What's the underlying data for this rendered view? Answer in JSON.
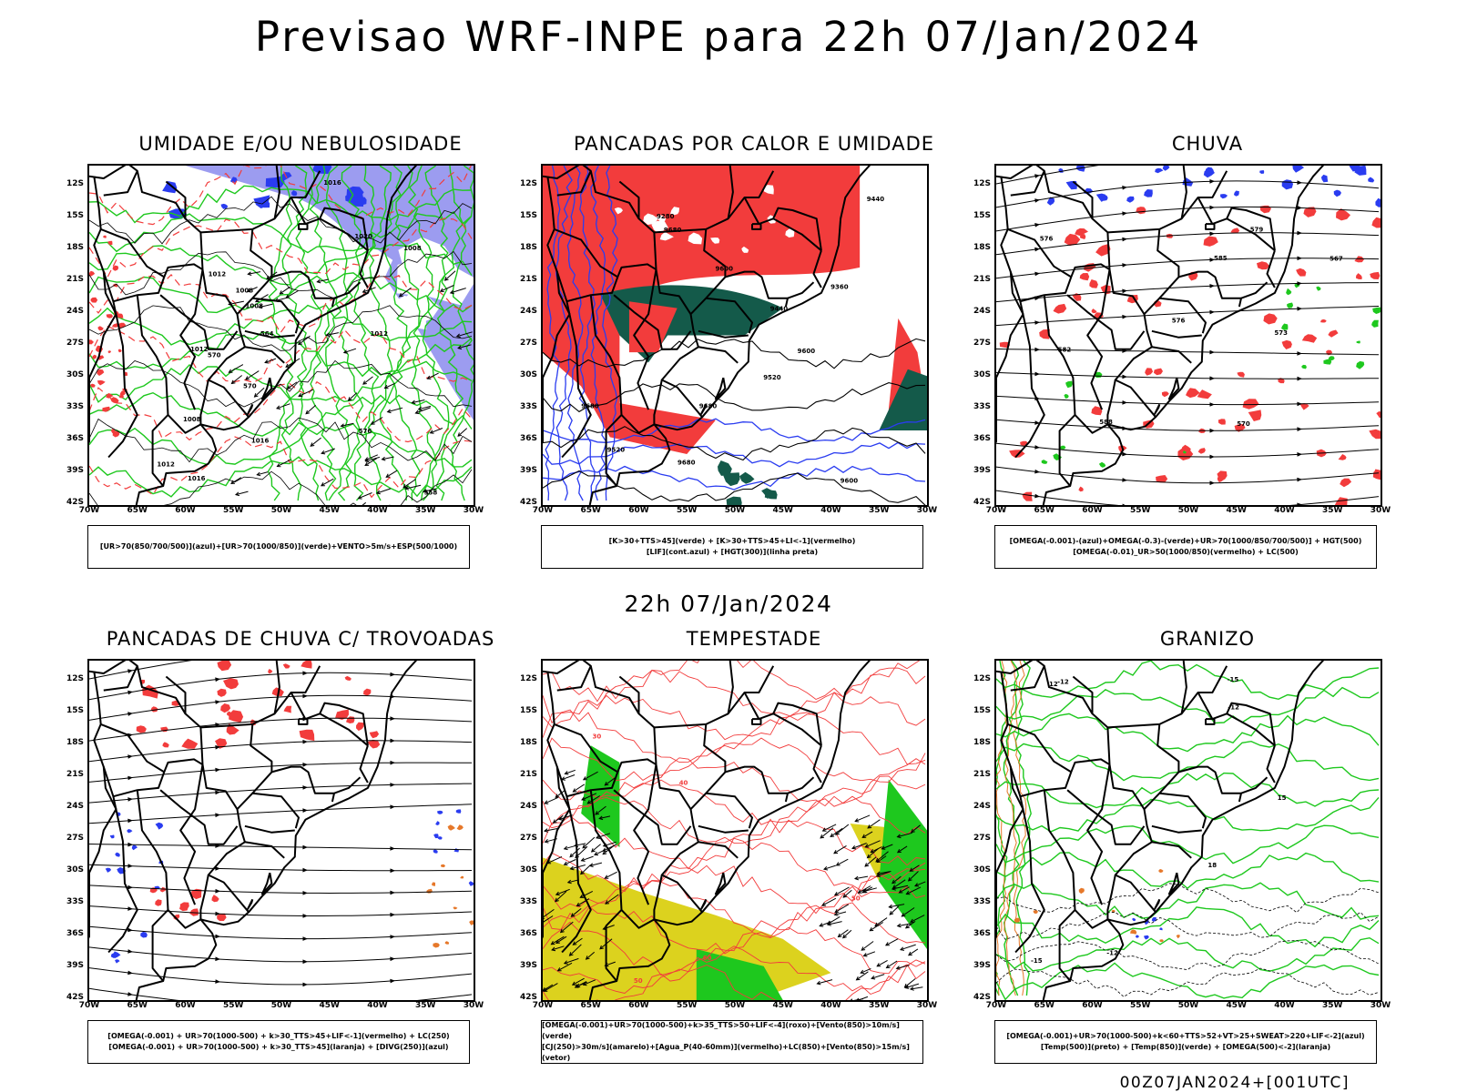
{
  "title": "Previsao WRF-INPE  para 22h 07/Jan/2024",
  "middle_title": "22h 07/Jan/2024",
  "footer": "00Z07JAN2024+[001UTC]",
  "axes": {
    "lat_labels": [
      "12S",
      "15S",
      "18S",
      "21S",
      "24S",
      "27S",
      "30S",
      "33S",
      "36S",
      "39S",
      "42S"
    ],
    "lon_labels": [
      "70W",
      "65W",
      "60W",
      "55W",
      "50W",
      "45W",
      "40W",
      "35W",
      "30W"
    ]
  },
  "colors": {
    "red": "#f23c3c",
    "green": "#1ec81e",
    "blue": "#2a3cf0",
    "lavender": "#9c9cf0",
    "darkgreen": "#145a4a",
    "yellow": "#dcd21e",
    "orange": "#e6782a"
  },
  "panels": [
    {
      "id": "umidade",
      "title": "UMIDADE E/OU NEBULOSIDADE",
      "legend": [
        "[UR>70(850/700/500)](azul)+[UR>70(1000/850)](verde)+VENTO>5m/s+ESP(500/1000)"
      ],
      "contour_labels": [
        "1012",
        "1008",
        "1012",
        "1016",
        "1008",
        "1012",
        "1016",
        "1008",
        "1012",
        "576",
        "570",
        "564",
        "558",
        "570",
        "1016",
        "1020",
        "1008"
      ]
    },
    {
      "id": "pancadas-calor",
      "title": "PANCADAS POR CALOR E UMIDADE",
      "legend": [
        "[K>30+TTS>45](verde) + [K>30+TTS>45+LI<-1](vermelho)",
        "[LIF](cont.azul) + [HGT(300)](linha preta)"
      ],
      "contour_labels": [
        "9680",
        "9680",
        "9680",
        "9680",
        "9600",
        "9600",
        "9600",
        "9520",
        "9520",
        "9440",
        "9440",
        "9360",
        "9280"
      ]
    },
    {
      "id": "chuva",
      "title": "CHUVA",
      "legend": [
        "[OMEGA(-0.001)-(azul)+OMEGA(-0.3)-(verde)+UR>70(1000/850/700/500)] + HGT(500)",
        "[OMEGA(-0.01)_UR>50(1000/850)(vermelho) + LC(500)"
      ],
      "contour_labels": [
        "585",
        "582",
        "576",
        "579",
        "573",
        "570",
        "567",
        "576",
        "588"
      ]
    },
    {
      "id": "pancadas-trovoadas",
      "title": "PANCADAS DE CHUVA C/ TROVOADAS",
      "legend": [
        "[OMEGA(-0.001) + UR>70(1000-500) + k>30_TTS>45+LIF<-1](vermelho) + LC(250)",
        "[OMEGA(-0.001) + UR>70(1000-500) + k>30_TTS>45](laranja) + [DIVG(250)](azul)"
      ]
    },
    {
      "id": "tempestade",
      "title": "TEMPESTADE",
      "legend": [
        "[OMEGA(-0.001)+UR>70(1000-500)+k>35_TTS>50+LIF<-4](roxo)+[Vento(850)>10m/s](verde)",
        "[CJ(250)>30m/s](amarelo)+[Agua_P(40-60mm)](vermelho)+LC(850)+[Vento(850)>15m/s](vetor)"
      ],
      "contour_labels": [
        "60",
        "50",
        "40",
        "50",
        "30"
      ]
    },
    {
      "id": "granizo",
      "title": "GRANIZO",
      "legend": [
        "[OMEGA(-0.001)+UR>70(1000-500)+k<60+TTS>52+VT>25+SWEAT>220+LIF<-2](azul)",
        "[Temp(500)](preto) + [Temp(850)](verde) + [OMEGA(500)<-2](laranja)"
      ],
      "contour_labels": [
        "-12",
        "-15",
        "-12",
        "12",
        "15",
        "18",
        "-15",
        "-12"
      ]
    }
  ]
}
